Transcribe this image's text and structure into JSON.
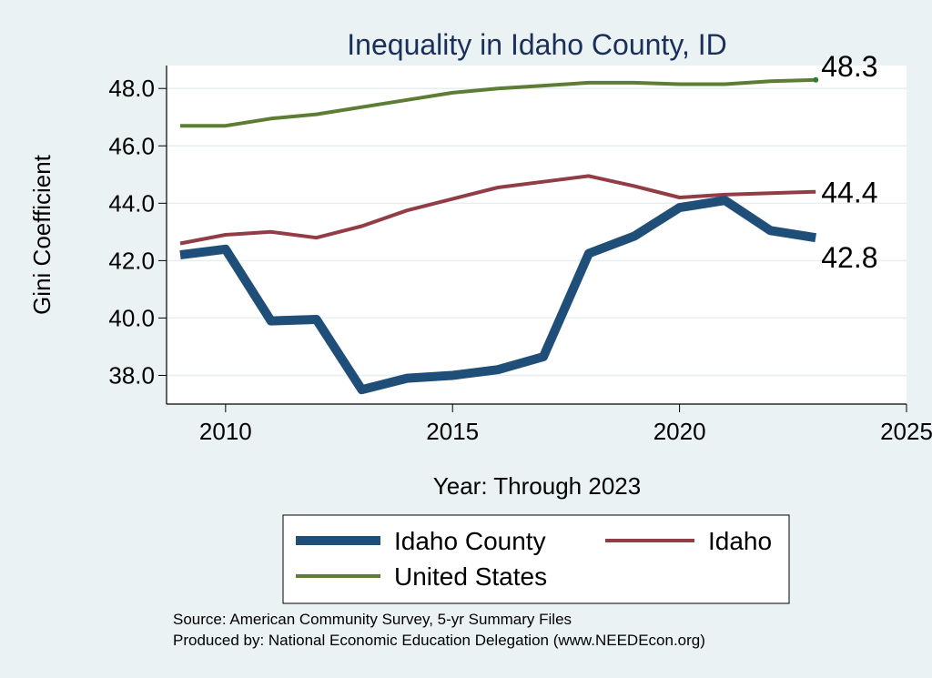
{
  "chart_data": {
    "type": "line",
    "title": "Inequality in Idaho County, ID",
    "xlabel": "Year: Through 2023",
    "ylabel": "Gini Coefficient",
    "xlim": [
      2008.7,
      2025
    ],
    "ylim": [
      37.0,
      48.8
    ],
    "xticks": [
      2010,
      2015,
      2020,
      2025
    ],
    "yticks": [
      38.0,
      40.0,
      42.0,
      44.0,
      46.0,
      48.0
    ],
    "ytick_labels": [
      "38.0",
      "40.0",
      "42.0",
      "44.0",
      "46.0",
      "48.0"
    ],
    "grid": true,
    "legend_position": "bottom",
    "x": [
      2009,
      2010,
      2011,
      2012,
      2013,
      2014,
      2015,
      2016,
      2017,
      2018,
      2019,
      2020,
      2021,
      2022,
      2023
    ],
    "series": [
      {
        "name": "Idaho County",
        "color": "#1f4e79",
        "values": [
          42.2,
          42.4,
          39.9,
          39.95,
          37.5,
          37.9,
          38.0,
          38.2,
          38.65,
          42.25,
          42.85,
          43.85,
          44.1,
          43.05,
          42.8
        ],
        "end_label": "42.8"
      },
      {
        "name": "Idaho",
        "color": "#923c45",
        "values": [
          42.6,
          42.9,
          43.0,
          42.8,
          43.2,
          43.75,
          44.15,
          44.55,
          44.75,
          44.95,
          44.6,
          44.2,
          44.3,
          44.35,
          44.4
        ],
        "end_label": "44.4"
      },
      {
        "name": "United States",
        "color": "#5d7d34",
        "values": [
          46.7,
          46.7,
          46.95,
          47.1,
          47.35,
          47.6,
          47.85,
          48.0,
          48.1,
          48.2,
          48.2,
          48.15,
          48.15,
          48.25,
          48.3
        ],
        "end_label": "48.3"
      }
    ],
    "source_lines": [
      "Source: American Community Survey, 5-yr Summary Files",
      "Produced by: National Economic Education Delegation (www.NEEDEcon.org)"
    ]
  }
}
